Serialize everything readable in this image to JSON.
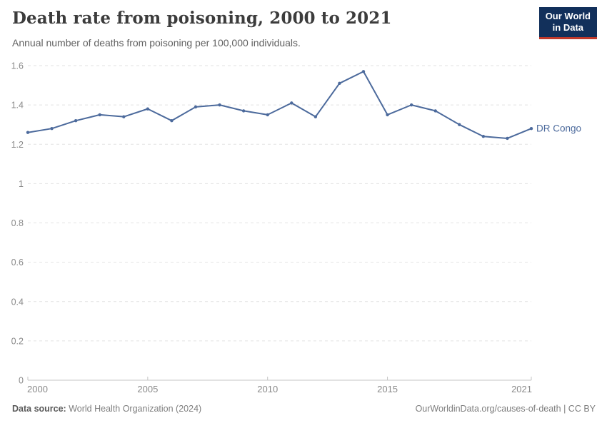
{
  "header": {
    "title": "Death rate from poisoning, 2000 to 2021",
    "subtitle": "Annual number of deaths from poisoning per 100,000 individuals.",
    "logo": {
      "line1": "Our World",
      "line2": "in Data",
      "bg_color": "#12305B",
      "accent_color": "#C0392B"
    }
  },
  "chart_data": {
    "type": "line",
    "title": "Death rate from poisoning, 2000 to 2021",
    "xlabel": "",
    "ylabel": "Annual number of deaths from poisoning per 100,000 individuals",
    "x": [
      2000,
      2001,
      2002,
      2003,
      2004,
      2005,
      2006,
      2007,
      2008,
      2009,
      2010,
      2011,
      2012,
      2013,
      2014,
      2015,
      2016,
      2017,
      2018,
      2019,
      2020,
      2021
    ],
    "series": [
      {
        "name": "DR Congo",
        "color": "#4C6A9C",
        "values": [
          1.26,
          1.28,
          1.32,
          1.35,
          1.34,
          1.38,
          1.32,
          1.39,
          1.4,
          1.37,
          1.35,
          1.41,
          1.34,
          1.51,
          1.57,
          1.35,
          1.4,
          1.37,
          1.3,
          1.24,
          1.23,
          1.28
        ]
      }
    ],
    "xlim": [
      2000,
      2021
    ],
    "ylim": [
      0,
      1.6
    ],
    "x_ticks": [
      2000,
      2005,
      2010,
      2015,
      2021
    ],
    "y_ticks": [
      0,
      0.2,
      0.4,
      0.6,
      0.8,
      1,
      1.2,
      1.4,
      1.6
    ],
    "grid": "horizontal-dashed",
    "grid_color": "#e2e2e2",
    "axis_color": "#c4c4c4",
    "tick_label_color": "#8a8a8a",
    "legend_position": "end-of-line"
  },
  "footer": {
    "source_label": "Data source:",
    "source_value": "World Health Organization (2024)",
    "attribution": "OurWorldinData.org/causes-of-death | CC BY"
  }
}
